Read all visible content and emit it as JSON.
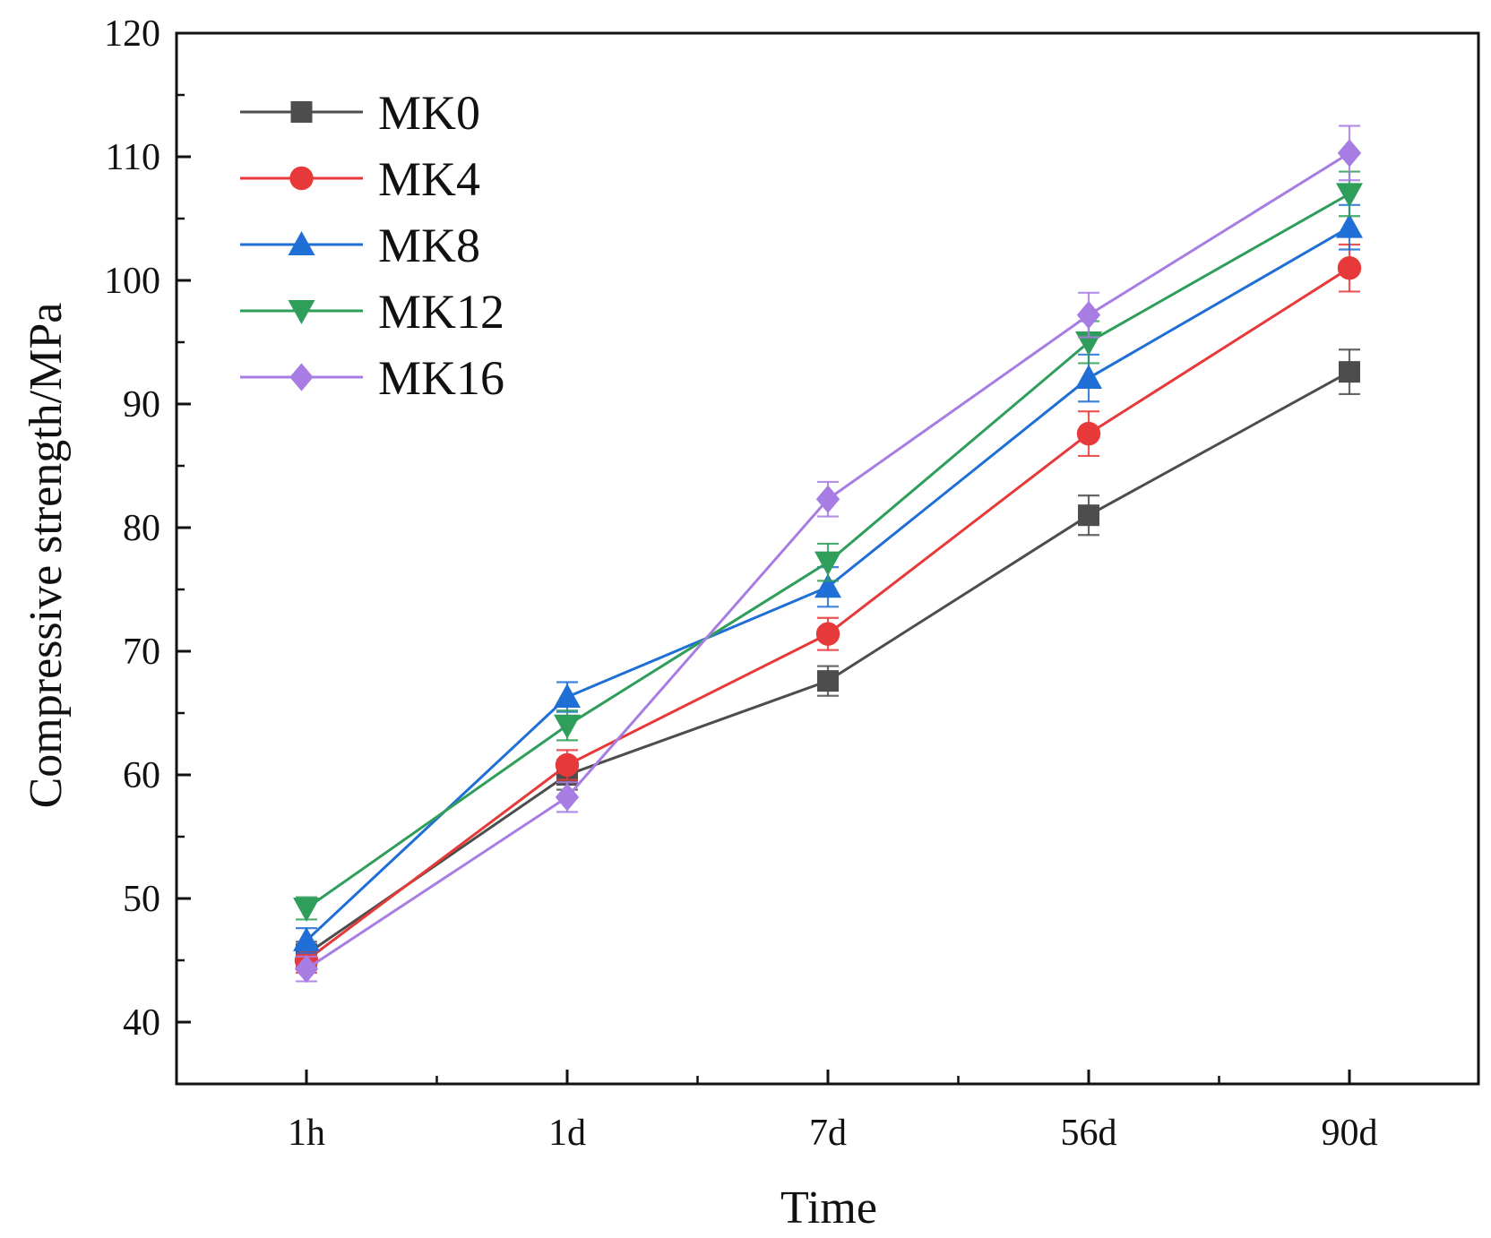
{
  "chart_data": {
    "type": "line",
    "title": "",
    "xlabel": "Time",
    "ylabel": "Compressive strength/MPa",
    "categories": [
      "1h",
      "1d",
      "7d",
      "56d",
      "90d"
    ],
    "ylim": [
      35,
      120
    ],
    "yticks": [
      40,
      50,
      60,
      70,
      80,
      90,
      100,
      110,
      120
    ],
    "grid": false,
    "legend_position": "top-left",
    "series": [
      {
        "name": "MK0",
        "color": "#4d4d4d",
        "marker": "square",
        "values": [
          45.5,
          60.0,
          67.6,
          81.0,
          92.6
        ],
        "errors": [
          1.0,
          1.2,
          1.2,
          1.6,
          1.8
        ]
      },
      {
        "name": "MK4",
        "color": "#e8393a",
        "marker": "circle",
        "values": [
          45.0,
          60.8,
          71.4,
          87.6,
          101.0
        ],
        "errors": [
          1.0,
          1.2,
          1.3,
          1.8,
          1.9
        ]
      },
      {
        "name": "MK8",
        "color": "#1f6fd6",
        "marker": "triangle-up",
        "values": [
          46.6,
          66.3,
          75.2,
          92.1,
          104.3
        ],
        "errors": [
          1.0,
          1.2,
          1.6,
          1.9,
          1.8
        ]
      },
      {
        "name": "MK12",
        "color": "#2e9e5a",
        "marker": "triangle-down",
        "values": [
          49.2,
          64.0,
          77.2,
          95.0,
          107.0
        ],
        "errors": [
          0.9,
          1.2,
          1.5,
          1.7,
          1.8
        ]
      },
      {
        "name": "MK16",
        "color": "#a77de3",
        "marker": "diamond",
        "values": [
          44.3,
          58.2,
          82.3,
          97.2,
          110.3
        ],
        "errors": [
          1.0,
          1.2,
          1.4,
          1.8,
          2.2
        ]
      }
    ]
  }
}
